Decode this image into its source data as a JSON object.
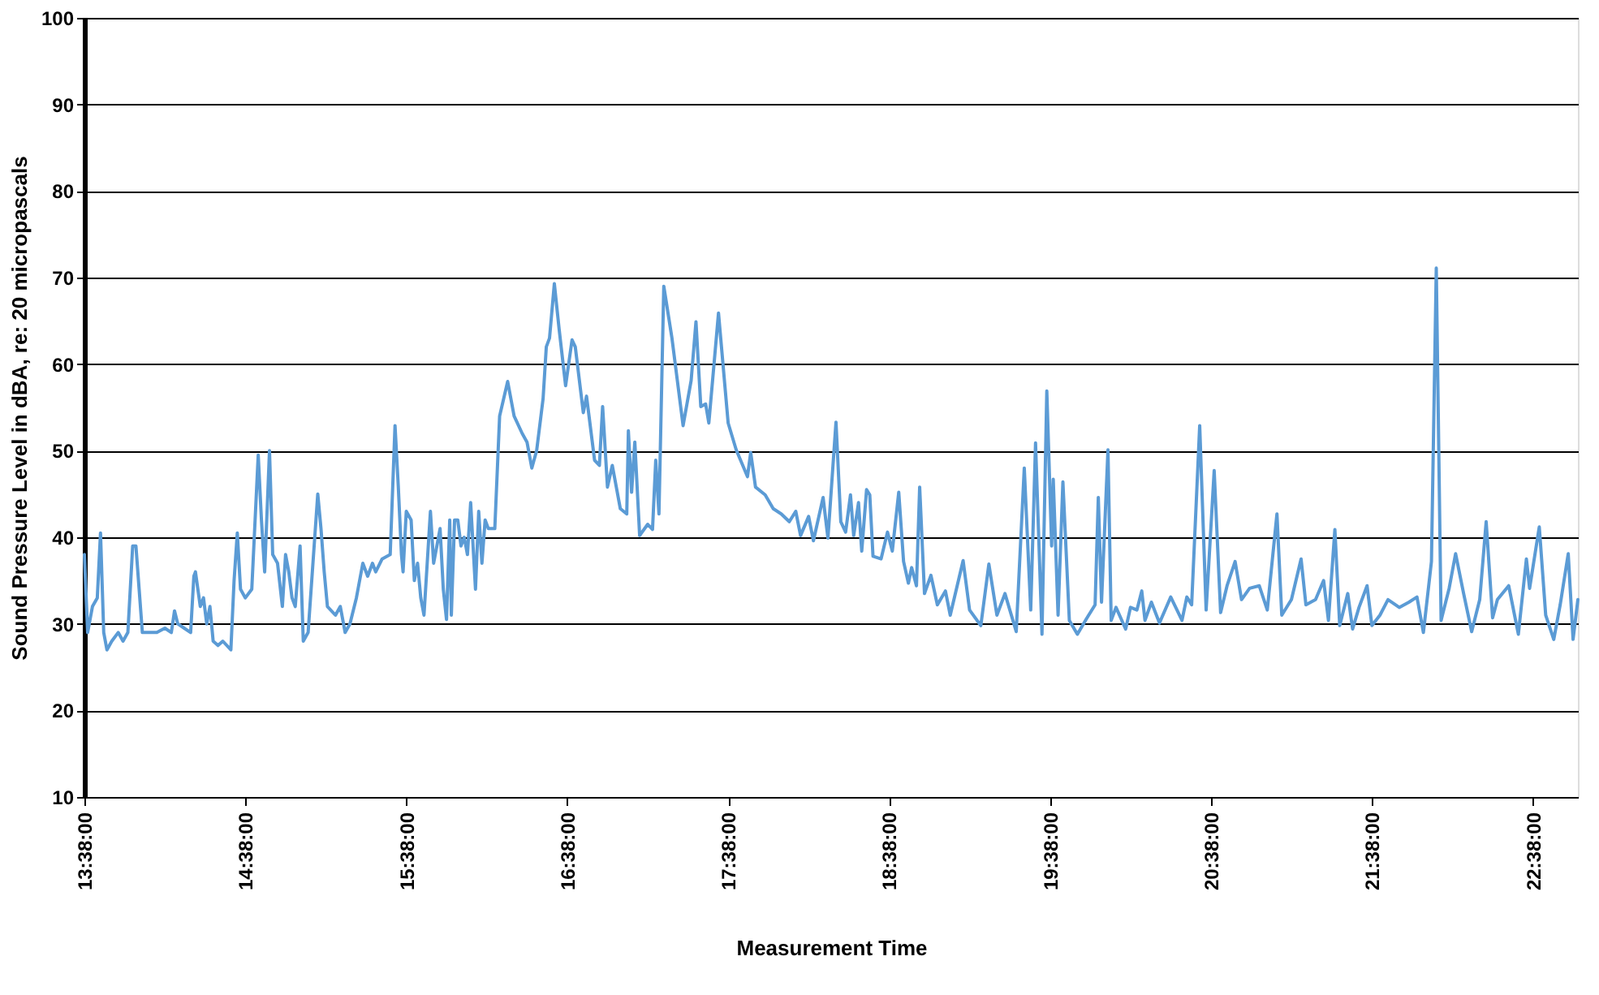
{
  "chart_data": {
    "type": "line",
    "xlabel": "Measurement Time",
    "ylabel": "Sound Pressure Level in dBA, re: 20 micropascals",
    "x": [
      13.633,
      13.653,
      13.683,
      13.713,
      13.733,
      13.753,
      13.773,
      13.803,
      13.843,
      13.873,
      13.903,
      13.933,
      13.953,
      13.973,
      13.993,
      14.083,
      14.133,
      14.173,
      14.193,
      14.213,
      14.253,
      14.293,
      14.313,
      14.323,
      14.353,
      14.373,
      14.393,
      14.413,
      14.433,
      14.463,
      14.493,
      14.543,
      14.563,
      14.583,
      14.603,
      14.633,
      14.673,
      14.713,
      14.733,
      14.753,
      14.783,
      14.803,
      14.833,
      14.863,
      14.883,
      14.903,
      14.923,
      14.943,
      14.973,
      14.993,
      15.023,
      15.083,
      15.103,
      15.123,
      15.143,
      15.193,
      15.223,
      15.253,
      15.283,
      15.323,
      15.363,
      15.393,
      15.423,
      15.443,
      15.483,
      15.533,
      15.563,
      15.583,
      15.603,
      15.613,
      15.633,
      15.663,
      15.683,
      15.703,
      15.723,
      15.743,
      15.783,
      15.803,
      15.823,
      15.843,
      15.863,
      15.883,
      15.903,
      15.913,
      15.933,
      15.953,
      15.973,
      15.993,
      16.013,
      16.033,
      16.063,
      16.083,
      16.103,
      16.123,
      16.143,
      16.183,
      16.213,
      16.263,
      16.303,
      16.353,
      16.383,
      16.413,
      16.443,
      16.483,
      16.503,
      16.523,
      16.553,
      16.583,
      16.623,
      16.663,
      16.683,
      16.733,
      16.753,
      16.803,
      16.833,
      16.853,
      16.883,
      16.913,
      16.963,
      17.003,
      17.013,
      17.033,
      17.053,
      17.083,
      17.133,
      17.163,
      17.183,
      17.203,
      17.233,
      17.283,
      17.353,
      17.403,
      17.433,
      17.463,
      17.493,
      17.513,
      17.573,
      17.633,
      17.683,
      17.753,
      17.773,
      17.803,
      17.863,
      17.913,
      17.963,
      18.013,
      18.053,
      18.083,
      18.133,
      18.163,
      18.223,
      18.253,
      18.303,
      18.333,
      18.363,
      18.393,
      18.413,
      18.443,
      18.463,
      18.493,
      18.513,
      18.533,
      18.583,
      18.623,
      18.653,
      18.693,
      18.723,
      18.753,
      18.773,
      18.803,
      18.823,
      18.853,
      18.893,
      18.933,
      18.983,
      19.013,
      19.093,
      19.133,
      19.203,
      19.253,
      19.303,
      19.353,
      19.423,
      19.473,
      19.513,
      19.543,
      19.583,
      19.613,
      19.643,
      19.653,
      19.683,
      19.713,
      19.753,
      19.803,
      19.863,
      19.913,
      19.933,
      19.953,
      19.993,
      20.013,
      20.043,
      20.103,
      20.133,
      20.173,
      20.203,
      20.223,
      20.263,
      20.313,
      20.383,
      20.453,
      20.483,
      20.513,
      20.563,
      20.603,
      20.653,
      20.693,
      20.733,
      20.783,
      20.823,
      20.873,
      20.933,
      20.983,
      21.043,
      21.073,
      21.133,
      21.193,
      21.223,
      21.283,
      21.333,
      21.363,
      21.403,
      21.433,
      21.483,
      21.513,
      21.553,
      21.603,
      21.633,
      21.683,
      21.733,
      21.803,
      21.863,
      21.913,
      21.953,
      22.003,
      22.033,
      22.063,
      22.113,
      22.153,
      22.203,
      22.253,
      22.303,
      22.343,
      22.383,
      22.413,
      22.483,
      22.543,
      22.593,
      22.613,
      22.673,
      22.713,
      22.763,
      22.803,
      22.853,
      22.883,
      22.913
    ],
    "series": [
      {
        "color": "#5b9bd5",
        "values": [
          38,
          29,
          32,
          33,
          40.5,
          29,
          27,
          28,
          29,
          28,
          29,
          39,
          39,
          34,
          29,
          29,
          29.5,
          29,
          31.5,
          30,
          29.5,
          29,
          35.5,
          36,
          32,
          33,
          30,
          32,
          28,
          27.5,
          28,
          27,
          35,
          40.5,
          34,
          33,
          34,
          49.5,
          42,
          36,
          50,
          38,
          37,
          32,
          38,
          36,
          33,
          32,
          39,
          28,
          29,
          45,
          41,
          36,
          32,
          31,
          32,
          29,
          30,
          33,
          37,
          35.5,
          37,
          36,
          37.5,
          38,
          52.9,
          46,
          38,
          36,
          43,
          42,
          35,
          37,
          33,
          31,
          43,
          37,
          39,
          41,
          34,
          30.5,
          42,
          31,
          42,
          42,
          39,
          40,
          38,
          44,
          34,
          43,
          37,
          42,
          41,
          41,
          54,
          58,
          54,
          52,
          51,
          48,
          50,
          56,
          62,
          63,
          69.3,
          64,
          57.5,
          62.8,
          62,
          54.4,
          56.3,
          48.9,
          48.3,
          55.1,
          45.8,
          48.3,
          43.3,
          42.7,
          52.3,
          45.2,
          51,
          40.2,
          41.5,
          40.9,
          48.9,
          42.7,
          69,
          63.1,
          52.9,
          58.1,
          64.9,
          55.1,
          55.4,
          53.2,
          65.9,
          53.2,
          50.1,
          47,
          49.8,
          45.8,
          44.9,
          43.3,
          42.7,
          41.8,
          43,
          40.2,
          42.4,
          39.6,
          44.6,
          39.9,
          53.3,
          41.8,
          40.6,
          44.9,
          40.2,
          44,
          38.4,
          45.5,
          44.9,
          37.8,
          37.5,
          40.6,
          38.4,
          45.2,
          37.2,
          34.7,
          36.5,
          34.4,
          45.8,
          33.5,
          35.6,
          32.2,
          33.8,
          31,
          37.3,
          31.6,
          29.8,
          36.9,
          31,
          33.5,
          29.1,
          48,
          31.6,
          50.9,
          28.8,
          56.9,
          39,
          46.7,
          31,
          46.4,
          30.4,
          28.8,
          30.7,
          32.2,
          44.6,
          32.5,
          50.1,
          30.4,
          31.9,
          29.4,
          31.9,
          31.6,
          33.8,
          30.4,
          32.5,
          30.1,
          33.1,
          30.4,
          33.1,
          32.2,
          52.9,
          31.6,
          47.7,
          31.3,
          34.4,
          37.2,
          32.8,
          34.1,
          34.4,
          31.6,
          42.7,
          31,
          32.8,
          37.5,
          32.2,
          32.8,
          35,
          30.4,
          40.9,
          29.8,
          33.5,
          29.4,
          31.9,
          34.4,
          29.8,
          31,
          32.8,
          31.9,
          32.5,
          33.1,
          29,
          37.2,
          71.1,
          30.4,
          34.1,
          38.1,
          33.5,
          29.1,
          32.8,
          41.8,
          30.7,
          32.8,
          34.4,
          28.8,
          37.5,
          34.1,
          41.2,
          31,
          28.2,
          32.2,
          38.1,
          28.2,
          32.8
        ]
      }
    ],
    "xlim": [
      13.633,
      22.913
    ],
    "xticks": [
      {
        "value": 13.633333333333333,
        "label": "13:38:00"
      },
      {
        "value": 14.633333333333333,
        "label": "14:38:00"
      },
      {
        "value": 15.633333333333333,
        "label": "15:38:00"
      },
      {
        "value": 16.633333333333333,
        "label": "16:38:00"
      },
      {
        "value": 17.633333333333333,
        "label": "17:38:00"
      },
      {
        "value": 18.633333333333333,
        "label": "18:38:00"
      },
      {
        "value": 19.633333333333333,
        "label": "19:38:00"
      },
      {
        "value": 20.633333333333333,
        "label": "20:38:00"
      },
      {
        "value": 21.633333333333333,
        "label": "21:38:00"
      },
      {
        "value": 22.633333333333333,
        "label": "22:38:00"
      }
    ],
    "ylim": [
      10,
      100
    ],
    "yticks": [
      10,
      20,
      30,
      40,
      50,
      60,
      70,
      80,
      90,
      100
    ],
    "grid": "y",
    "legend": false,
    "marker": "none",
    "line_style": "solid"
  }
}
